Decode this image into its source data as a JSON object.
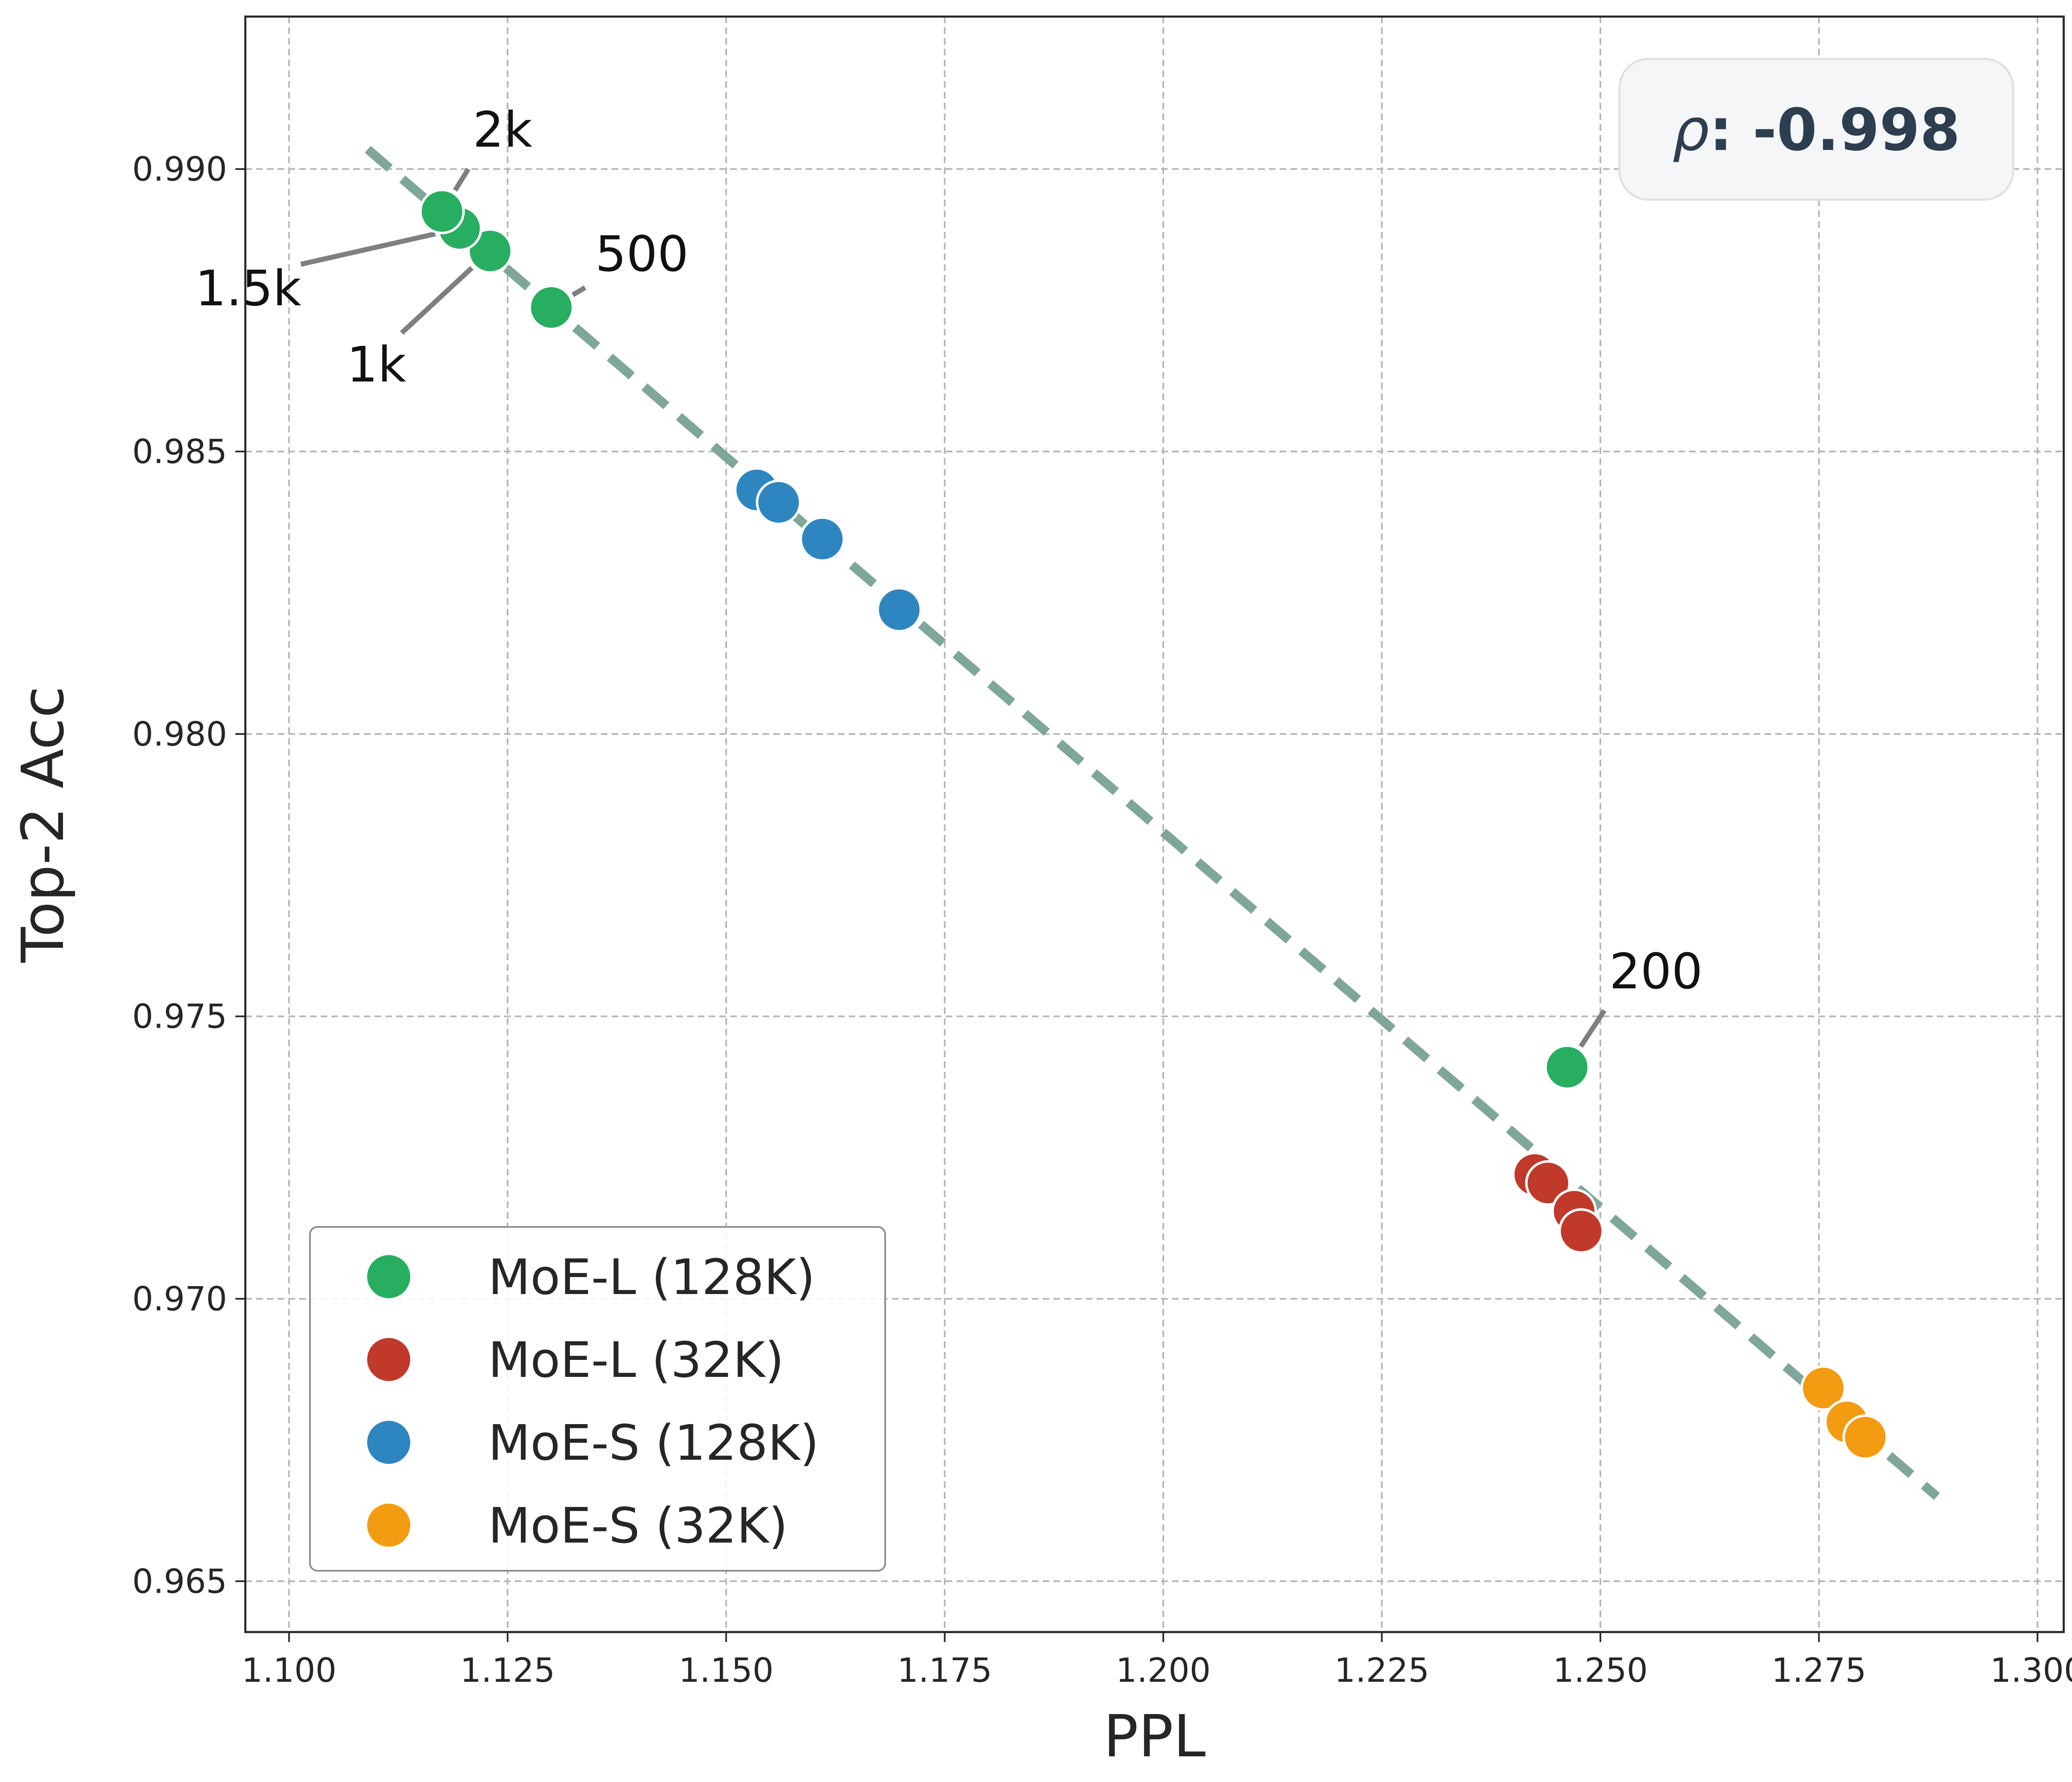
{
  "chart_data": {
    "type": "scatter",
    "xlabel": "PPL",
    "ylabel": "Top-2 Acc",
    "xlim": [
      1.095,
      1.303
    ],
    "ylim": [
      0.9641,
      0.9927
    ],
    "xticks": [
      1.1,
      1.125,
      1.15,
      1.175,
      1.2,
      1.225,
      1.25,
      1.275,
      1.3
    ],
    "xtick_labels": [
      "1.100",
      "1.125",
      "1.150",
      "1.175",
      "1.200",
      "1.225",
      "1.250",
      "1.275",
      "1.300"
    ],
    "yticks": [
      0.965,
      0.97,
      0.975,
      0.98,
      0.985,
      0.99
    ],
    "ytick_labels": [
      "0.965",
      "0.970",
      "0.975",
      "0.980",
      "0.985",
      "0.990"
    ],
    "grid": true,
    "legend_position": "lower-left",
    "series": [
      {
        "name": "MoE-L (128K)",
        "color": "#27ae60",
        "points": [
          {
            "x": 1.2462,
            "y": 0.9741
          },
          {
            "x": 1.13,
            "y": 0.98755
          },
          {
            "x": 1.123,
            "y": 0.98855
          },
          {
            "x": 1.1195,
            "y": 0.98895
          },
          {
            "x": 1.1175,
            "y": 0.98925
          }
        ]
      },
      {
        "name": "MoE-L (32K)",
        "color": "#c0392b",
        "points": [
          {
            "x": 1.2425,
            "y": 0.9722
          },
          {
            "x": 1.244,
            "y": 0.97205
          },
          {
            "x": 1.247,
            "y": 0.97155
          },
          {
            "x": 1.2478,
            "y": 0.9712
          }
        ]
      },
      {
        "name": "MoE-S (128K)",
        "color": "#2e86c1",
        "points": [
          {
            "x": 1.1535,
            "y": 0.98432
          },
          {
            "x": 1.156,
            "y": 0.9841
          },
          {
            "x": 1.161,
            "y": 0.98345
          },
          {
            "x": 1.1698,
            "y": 0.9822
          }
        ]
      },
      {
        "name": "MoE-S (32K)",
        "color": "#f39c12",
        "points": [
          {
            "x": 1.2755,
            "y": 0.96842
          },
          {
            "x": 1.2782,
            "y": 0.96782
          },
          {
            "x": 1.2803,
            "y": 0.96755
          }
        ]
      }
    ],
    "fit_line": {
      "x1": 1.109,
      "y1": 0.99035,
      "x2": 1.2885,
      "y2": 0.9665,
      "color": "#7fa69a"
    },
    "annotations": [
      {
        "text": "2k",
        "x": 1.1175,
        "y": 0.98925,
        "tx": 1.1215,
        "ty": 0.99025
      },
      {
        "text": "1.5k",
        "x": 1.1195,
        "y": 0.98895,
        "tx": 1.0995,
        "ty": 0.98825
      },
      {
        "text": "1k",
        "x": 1.123,
        "y": 0.98855,
        "tx": 1.1115,
        "ty": 0.9869
      },
      {
        "text": "500",
        "x": 1.13,
        "y": 0.98755,
        "tx": 1.1355,
        "ty": 0.98805
      },
      {
        "text": "200",
        "x": 1.2462,
        "y": 0.9741,
        "tx": 1.2515,
        "ty": 0.97535
      }
    ],
    "correlation": {
      "symbol": "ρ",
      "label": ": -0.998"
    }
  }
}
